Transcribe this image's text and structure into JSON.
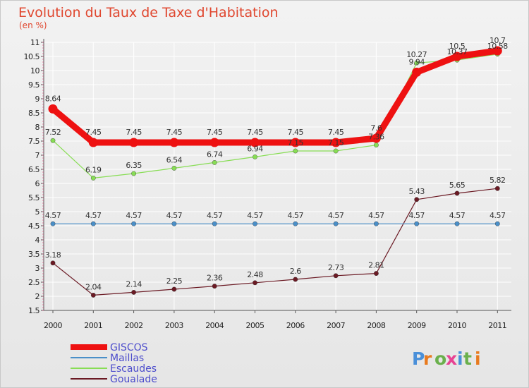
{
  "chart_data": {
    "type": "line",
    "title": "Evolution du Taux de Taxe d'Habitation",
    "ylabel": "(en %)",
    "xlabel": "",
    "ylim": [
      1.5,
      11
    ],
    "y_ticks": [
      "1.5",
      "2",
      "2.5",
      "3",
      "3.5",
      "4",
      "4.5",
      "5",
      "5.5",
      "6",
      "6.5",
      "7",
      "7.5",
      "8",
      "8.5",
      "9",
      "9.5",
      "10",
      "10.5",
      "11"
    ],
    "categories": [
      "2000",
      "2001",
      "2002",
      "2003",
      "2004",
      "2005",
      "2006",
      "2007",
      "2008",
      "2009",
      "2010",
      "2011"
    ],
    "series": [
      {
        "name": "GISCOS",
        "color": "#ee1111",
        "values": [
          8.64,
          7.45,
          7.45,
          7.45,
          7.45,
          7.45,
          7.45,
          7.45,
          7.6,
          9.94,
          10.5,
          10.7
        ],
        "labels": [
          "8.64",
          "7.45",
          "7.45",
          "7.45",
          "7.45",
          "7.45",
          "7.45",
          "7.45",
          "7.6",
          "9.94",
          "10.5",
          "10.7"
        ]
      },
      {
        "name": "Maillas",
        "color": "#4a8fc8",
        "values": [
          4.57,
          4.57,
          4.57,
          4.57,
          4.57,
          4.57,
          4.57,
          4.57,
          4.57,
          4.57,
          4.57,
          4.57
        ],
        "labels": [
          "4.57",
          "4.57",
          "4.57",
          "4.57",
          "4.57",
          "4.57",
          "4.57",
          "4.57",
          "4.57",
          "4.57",
          "4.57",
          "4.57"
        ]
      },
      {
        "name": "Escaudes",
        "color": "#88dd55",
        "values": [
          7.52,
          6.19,
          6.35,
          6.54,
          6.74,
          6.94,
          7.15,
          7.15,
          7.36,
          10.27,
          10.37,
          10.58
        ],
        "labels": [
          "7.52",
          "6.19",
          "6.35",
          "6.54",
          "6.74",
          "6.94",
          "7.15",
          "7.15",
          "7.36",
          "10.27",
          "10.37",
          "10.58"
        ]
      },
      {
        "name": "Goualade",
        "color": "#6b1a24",
        "values": [
          3.18,
          2.04,
          2.14,
          2.25,
          2.36,
          2.48,
          2.6,
          2.73,
          2.81,
          5.43,
          5.65,
          5.82
        ],
        "labels": [
          "3.18",
          "2.04",
          "2.14",
          "2.25",
          "2.36",
          "2.48",
          "2.6",
          "2.73",
          "2.81",
          "5.43",
          "5.65",
          "5.82"
        ]
      }
    ],
    "legend_position": "bottom-left",
    "watermark": "Proxiti"
  }
}
